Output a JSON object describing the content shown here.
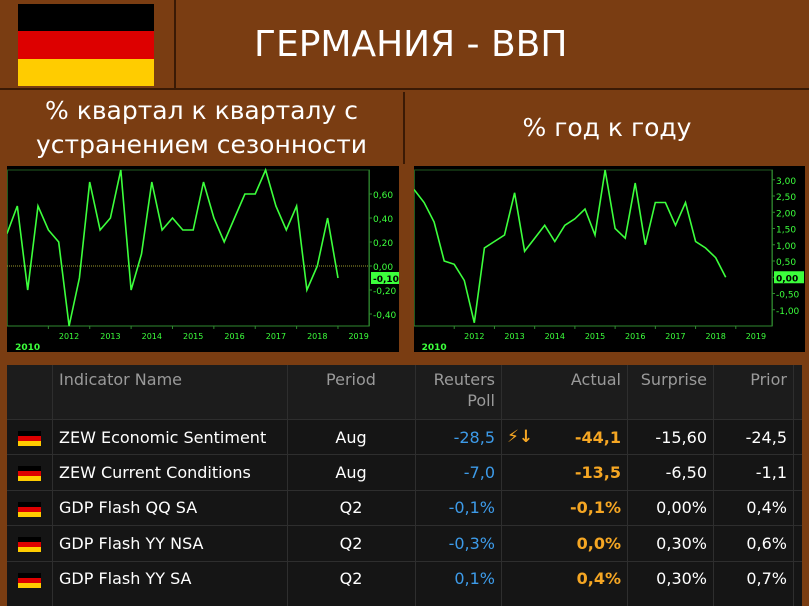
{
  "header": {
    "title": "ГЕРМАНИЯ - ВВП",
    "flag_colors": [
      "#000000",
      "#dd0000",
      "#ffcc00"
    ]
  },
  "subtitles": {
    "left": "% квартал к кварталу с устранением сезонности",
    "right": "% год к году"
  },
  "chart_data": [
    {
      "type": "line",
      "title": "% квартал к кварталу с устранением сезонности",
      "x_ticks": [
        "2012",
        "2013",
        "2014",
        "2015",
        "2016",
        "2017",
        "2018",
        "2019"
      ],
      "x_caption": "2010",
      "y_ticks": [
        "0,60",
        "0,40",
        "0,20",
        "0,00",
        "-0,20",
        "-0,40"
      ],
      "y_tick_values": [
        0.6,
        0.4,
        0.2,
        0.0,
        -0.2,
        -0.4
      ],
      "last_value_label": "-0,10",
      "last_value": -0.1,
      "ylim": [
        -0.5,
        0.8
      ],
      "color": "#3cff3c",
      "x": [
        2011.0,
        2011.25,
        2011.5,
        2011.75,
        2012.0,
        2012.25,
        2012.5,
        2012.75,
        2013.0,
        2013.25,
        2013.5,
        2013.75,
        2014.0,
        2014.25,
        2014.5,
        2014.75,
        2015.0,
        2015.25,
        2015.5,
        2015.75,
        2016.0,
        2016.25,
        2016.5,
        2016.75,
        2017.0,
        2017.25,
        2017.5,
        2017.75,
        2018.0,
        2018.25,
        2018.5,
        2018.75,
        2019.0,
        2019.25
      ],
      "values": [
        0.27,
        0.5,
        -0.2,
        0.5,
        0.3,
        0.2,
        -0.5,
        -0.1,
        0.7,
        0.3,
        0.4,
        0.8,
        -0.2,
        0.1,
        0.7,
        0.3,
        0.4,
        0.3,
        0.3,
        0.7,
        0.4,
        0.2,
        0.4,
        0.6,
        0.6,
        0.8,
        0.5,
        0.3,
        0.5,
        -0.2,
        0.0,
        0.4,
        -0.1,
        null
      ]
    },
    {
      "type": "line",
      "title": "% год к году",
      "x_ticks": [
        "2012",
        "2013",
        "2014",
        "2015",
        "2016",
        "2017",
        "2018",
        "2019"
      ],
      "x_caption": "2010",
      "y_ticks": [
        "3,00",
        "2,50",
        "2,00",
        "1,50",
        "1,00",
        "0,50",
        "0,00",
        "-0,50",
        "-1,00"
      ],
      "y_tick_values": [
        3.0,
        2.5,
        2.0,
        1.5,
        1.0,
        0.5,
        0.0,
        -0.5,
        -1.0
      ],
      "last_value_label": "0,00",
      "last_value": 0.0,
      "ylim": [
        -1.5,
        3.3
      ],
      "color": "#3cff3c",
      "x": [
        2011.0,
        2011.25,
        2011.5,
        2011.75,
        2012.0,
        2012.25,
        2012.5,
        2012.75,
        2013.0,
        2013.25,
        2013.5,
        2013.75,
        2014.0,
        2014.25,
        2014.5,
        2014.75,
        2015.0,
        2015.25,
        2015.5,
        2015.75,
        2016.0,
        2016.25,
        2016.5,
        2016.75,
        2017.0,
        2017.25,
        2017.5,
        2017.75,
        2018.0,
        2018.25,
        2018.5,
        2018.75,
        2019.0,
        2019.25
      ],
      "values": [
        2.7,
        2.3,
        1.7,
        0.5,
        0.4,
        -0.1,
        -1.4,
        0.9,
        1.1,
        1.3,
        2.6,
        0.8,
        1.2,
        1.6,
        1.1,
        1.6,
        1.8,
        2.1,
        1.3,
        3.3,
        1.5,
        1.2,
        2.9,
        1.0,
        2.3,
        2.3,
        1.6,
        2.3,
        1.1,
        0.9,
        0.6,
        0.0,
        null,
        null
      ]
    }
  ],
  "table": {
    "headers": {
      "name": "Indicator Name",
      "period": "Period",
      "poll_line1": "Reuters",
      "poll_line2": "Poll",
      "actual": "Actual",
      "surprise": "Surprise",
      "prior": "Prior"
    },
    "rows": [
      {
        "name": "ZEW Economic Sentiment",
        "period": "Aug",
        "poll": "-28,5",
        "actual": "-44,1",
        "surprise": "-15,60",
        "prior": "-24,5",
        "alert": "⚡↓"
      },
      {
        "name": "ZEW Current Conditions",
        "period": "Aug",
        "poll": "-7,0",
        "actual": "-13,5",
        "surprise": "-6,50",
        "prior": "-1,1",
        "alert": ""
      },
      {
        "name": "GDP Flash QQ SA",
        "period": "Q2",
        "poll": "-0,1%",
        "actual": "-0,1%",
        "surprise": "0,00%",
        "prior": "0,4%",
        "alert": ""
      },
      {
        "name": "GDP Flash YY NSA",
        "period": "Q2",
        "poll": "-0,3%",
        "actual": "0,0%",
        "surprise": "0,30%",
        "prior": "0,6%",
        "alert": ""
      },
      {
        "name": "GDP Flash YY SA",
        "period": "Q2",
        "poll": "0,1%",
        "actual": "0,4%",
        "surprise": "0,30%",
        "prior": "0,7%",
        "alert": ""
      }
    ]
  }
}
